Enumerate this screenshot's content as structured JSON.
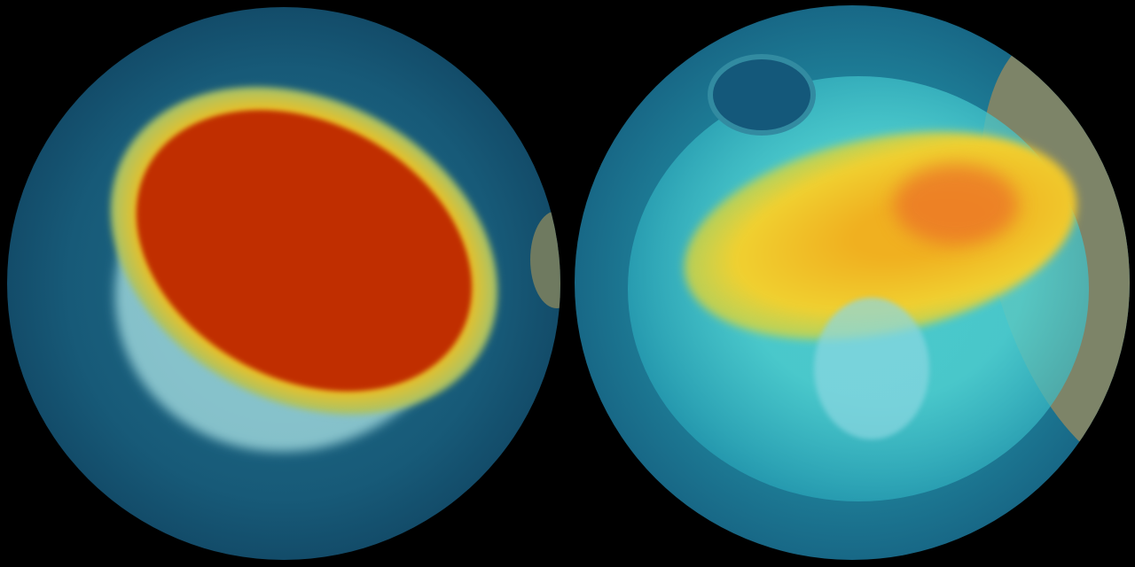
{
  "image": {
    "description_colors": {
      "ocean": "#175a78",
      "ozone_high": "#c83200",
      "ozone_mid": "#f0c020",
      "ozone_low": "#40c8d0",
      "ice": "#9fd8dc",
      "land": "#8a8a70"
    }
  }
}
